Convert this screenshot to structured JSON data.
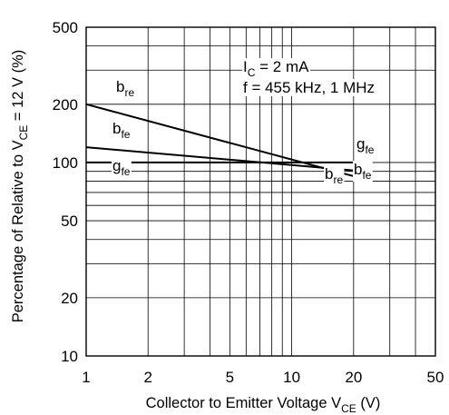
{
  "chart_data": {
    "type": "line",
    "title": "",
    "xlabel": {
      "main": "Collector to Emitter Voltage  V",
      "sub": "CE",
      "unit": " (V)"
    },
    "ylabel": {
      "main": "Percentage of Relative to  V",
      "sub": "CE",
      "unit": " = 12 V (%)"
    },
    "xscale": "log",
    "yscale": "log",
    "xlim": [
      1,
      50
    ],
    "ylim": [
      10,
      500
    ],
    "x_ticks": [
      1,
      2,
      5,
      10,
      20,
      50
    ],
    "x_tick_labels": [
      "1",
      "2",
      "5",
      "10",
      "20",
      "50"
    ],
    "y_ticks": [
      10,
      20,
      50,
      100,
      200,
      500
    ],
    "y_tick_labels": [
      "10",
      "20",
      "50",
      "100",
      "200",
      "500"
    ],
    "grid": true,
    "conditions": {
      "line1": {
        "prefix": "I",
        "sub": "C",
        "text": " = 2 mA"
      },
      "line2": "f = 455 kHz, 1 MHz"
    },
    "series": [
      {
        "name": "b",
        "sub": "re",
        "x": [
          1,
          20
        ],
        "y": [
          200,
          85
        ]
      },
      {
        "name": "b",
        "sub": "fe",
        "x": [
          1,
          20
        ],
        "y": [
          120,
          91
        ]
      },
      {
        "name": "g",
        "sub": "fe",
        "x": [
          1,
          20
        ],
        "y": [
          100,
          100
        ]
      }
    ],
    "series_labels": [
      {
        "main": "b",
        "sub": "re"
      },
      {
        "main": "b",
        "sub": "fe"
      },
      {
        "main": "g",
        "sub": "fe"
      },
      {
        "main": "g",
        "sub": "fe"
      },
      {
        "main": "b",
        "sub": "re"
      },
      {
        "main": "b",
        "sub": "fe"
      }
    ]
  }
}
